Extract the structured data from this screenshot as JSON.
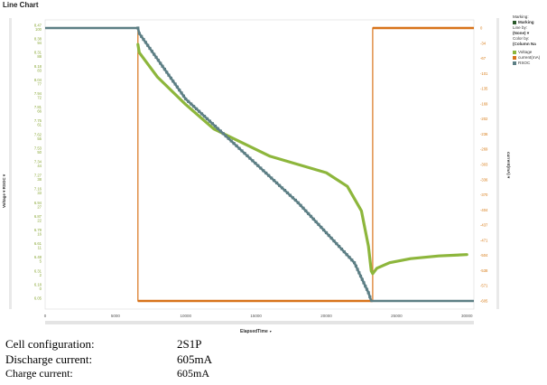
{
  "chart_title": "Line Chart",
  "left_axis": {
    "label": "Voltage ▾ RSOC ▾"
  },
  "right_axis": {
    "label": "current(mA) ▾"
  },
  "x_axis": {
    "label": "ElapsedTime",
    "dropdown": "▾"
  },
  "legend": {
    "marking_title": "Marking:",
    "marking_value": "Marking",
    "line_by_title": "Line by:",
    "line_by_value": "(None) ▾",
    "color_by_title": "Color by:",
    "color_by_value": "(Column Na",
    "items": [
      "Voltage",
      "current(mA)",
      "RSOC"
    ],
    "colors": [
      "#8db63c",
      "#d8731a",
      "#5d7f85"
    ]
  },
  "info": [
    {
      "label": "Cell configuration:",
      "value": "2S1P"
    },
    {
      "label": "Discharge current:",
      "value": "605mA"
    },
    {
      "label": "Charge current:",
      "value": "605mA"
    }
  ],
  "chart_data": {
    "type": "line",
    "title": "Line Chart",
    "xlabel": "ElapsedTime",
    "x_ticks": [
      0,
      5000,
      10000,
      15000,
      20000,
      25000,
      30000
    ],
    "x_tick_labels": [
      "0",
      "5000",
      "10000",
      "15000",
      "20000",
      "25000",
      "30000"
    ],
    "xlim": [
      0,
      30500
    ],
    "left_ticks": {
      "voltage": [
        "8.47",
        "8.38",
        "8.31",
        "8.18",
        "8.04",
        "7.94",
        "7.81",
        "7.75",
        "7.62",
        "7.53",
        "7.34",
        "7.27",
        "7.16",
        "6.94",
        "6.87",
        "6.79",
        "6.61",
        "6.48",
        "6.31",
        "6.18",
        "6.05"
      ],
      "rsoc": [
        "100",
        "94",
        "88",
        "83",
        "77",
        "72",
        "66",
        "61",
        "55",
        "50",
        "44",
        "38",
        "33",
        "27",
        "22",
        "16",
        "11",
        "5",
        "2",
        "0"
      ]
    },
    "right_ticks": [
      "0",
      "-34",
      "-67",
      "-101",
      "-135",
      "-169",
      "-202",
      "-236",
      "-269",
      "-303",
      "-336",
      "-370",
      "-404",
      "-437",
      "-471",
      "-504",
      "-538",
      "-571",
      "-605"
    ],
    "series": [
      {
        "name": "RSOC",
        "unit_axis": "left-rsoc",
        "points": [
          [
            0,
            100
          ],
          [
            6600,
            100
          ],
          [
            6700,
            98
          ],
          [
            10000,
            74
          ],
          [
            14000,
            55
          ],
          [
            18000,
            36
          ],
          [
            22000,
            14
          ],
          [
            23000,
            3
          ],
          [
            23200,
            0
          ],
          [
            30500,
            0
          ]
        ]
      },
      {
        "name": "Voltage",
        "unit_axis": "left-rsoc-scale",
        "points": [
          [
            6600,
            94
          ],
          [
            6700,
            91
          ],
          [
            8000,
            82
          ],
          [
            10000,
            72
          ],
          [
            12000,
            63
          ],
          [
            14000,
            58
          ],
          [
            16000,
            53
          ],
          [
            18000,
            50
          ],
          [
            20000,
            47
          ],
          [
            21500,
            42
          ],
          [
            22500,
            33
          ],
          [
            23000,
            20
          ],
          [
            23200,
            11
          ],
          [
            23300,
            10
          ],
          [
            23600,
            12
          ],
          [
            24500,
            14
          ],
          [
            26000,
            15.5
          ],
          [
            28000,
            16.5
          ],
          [
            30000,
            17
          ]
        ]
      },
      {
        "name": "current(mA)",
        "unit_axis": "right",
        "points": [
          [
            0,
            0
          ],
          [
            6600,
            0
          ],
          [
            6600,
            -605
          ],
          [
            23300,
            -605
          ],
          [
            23300,
            0
          ],
          [
            30500,
            0
          ]
        ]
      }
    ]
  }
}
